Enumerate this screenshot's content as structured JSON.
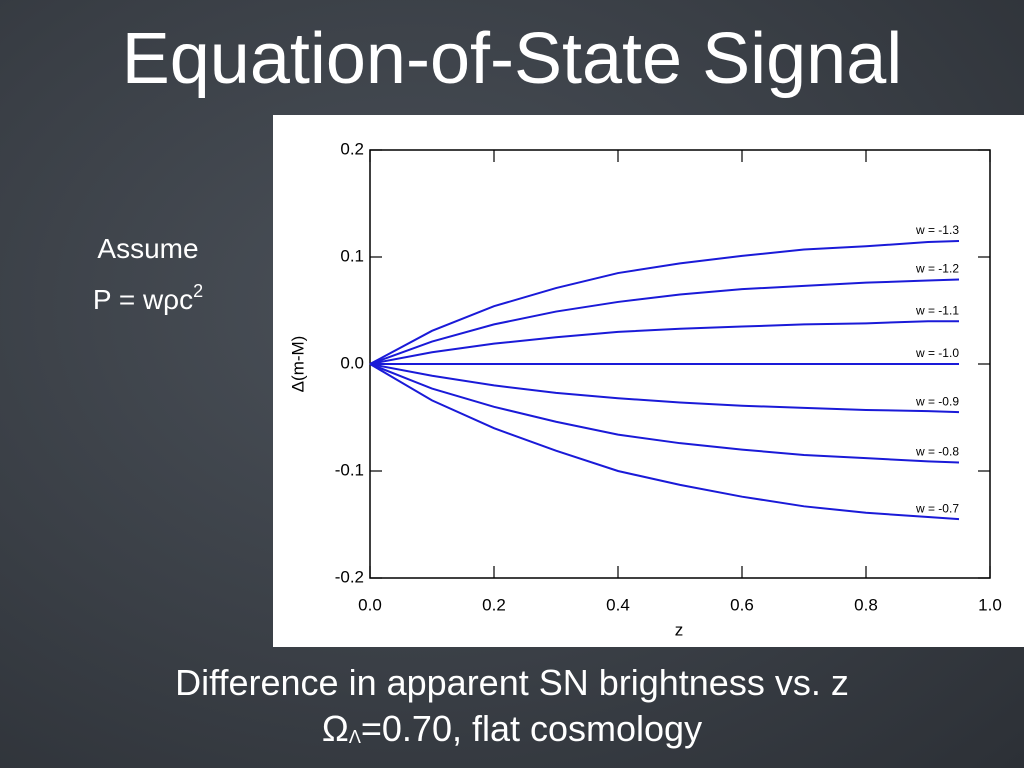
{
  "title": "Equation-of-State Signal",
  "note": {
    "line1": "Assume",
    "line2": "P = wρc",
    "line2_sup": "2"
  },
  "caption": {
    "line1": "Difference in apparent SN brightness vs. z",
    "line2_a": "Ω",
    "line2_sub": "Λ",
    "line2_b": "=0.70, flat cosmology"
  },
  "chart_data": {
    "type": "line",
    "xlabel": "z",
    "ylabel": "Δ(m-M)",
    "x": [
      0,
      0.1,
      0.2,
      0.3,
      0.4,
      0.5,
      0.6,
      0.7,
      0.8,
      0.9,
      0.95
    ],
    "series": [
      {
        "name": "w = -1.3",
        "color": "#1a1ad8",
        "values": [
          0,
          0.031,
          0.054,
          0.071,
          0.085,
          0.094,
          0.101,
          0.107,
          0.11,
          0.114,
          0.115
        ]
      },
      {
        "name": "w = -1.2",
        "color": "#1a1ad8",
        "values": [
          0,
          0.021,
          0.037,
          0.049,
          0.058,
          0.065,
          0.07,
          0.073,
          0.076,
          0.078,
          0.079
        ]
      },
      {
        "name": "w = -1.1",
        "color": "#1a1ad8",
        "values": [
          0,
          0.011,
          0.019,
          0.025,
          0.03,
          0.033,
          0.035,
          0.037,
          0.038,
          0.04,
          0.04
        ]
      },
      {
        "name": "w = -1.0",
        "color": "#1a1ad8",
        "values": [
          0,
          0,
          0,
          0,
          0,
          0,
          0,
          0,
          0,
          0,
          0
        ]
      },
      {
        "name": "w = -0.9",
        "color": "#1a1ad8",
        "values": [
          0,
          -0.011,
          -0.02,
          -0.027,
          -0.032,
          -0.036,
          -0.039,
          -0.041,
          -0.043,
          -0.044,
          -0.045
        ]
      },
      {
        "name": "w = -0.8",
        "color": "#1a1ad8",
        "values": [
          0,
          -0.023,
          -0.04,
          -0.054,
          -0.066,
          -0.074,
          -0.08,
          -0.085,
          -0.088,
          -0.091,
          -0.092
        ]
      },
      {
        "name": "w = -0.7",
        "color": "#1a1ad8",
        "values": [
          0,
          -0.034,
          -0.06,
          -0.081,
          -0.1,
          -0.113,
          -0.124,
          -0.133,
          -0.139,
          -0.143,
          -0.145
        ]
      }
    ],
    "xlim": [
      0,
      1
    ],
    "xticks": [
      {
        "value": 0,
        "label": "0.0"
      },
      0.2,
      0.4,
      0.6,
      0.8,
      {
        "value": 1,
        "label": "1.0"
      }
    ],
    "ylim": [
      -0.2,
      0.2
    ],
    "yticks": [
      -0.2,
      -0.1,
      {
        "value": 0,
        "label": "0.0"
      },
      0.1,
      0.2
    ]
  }
}
